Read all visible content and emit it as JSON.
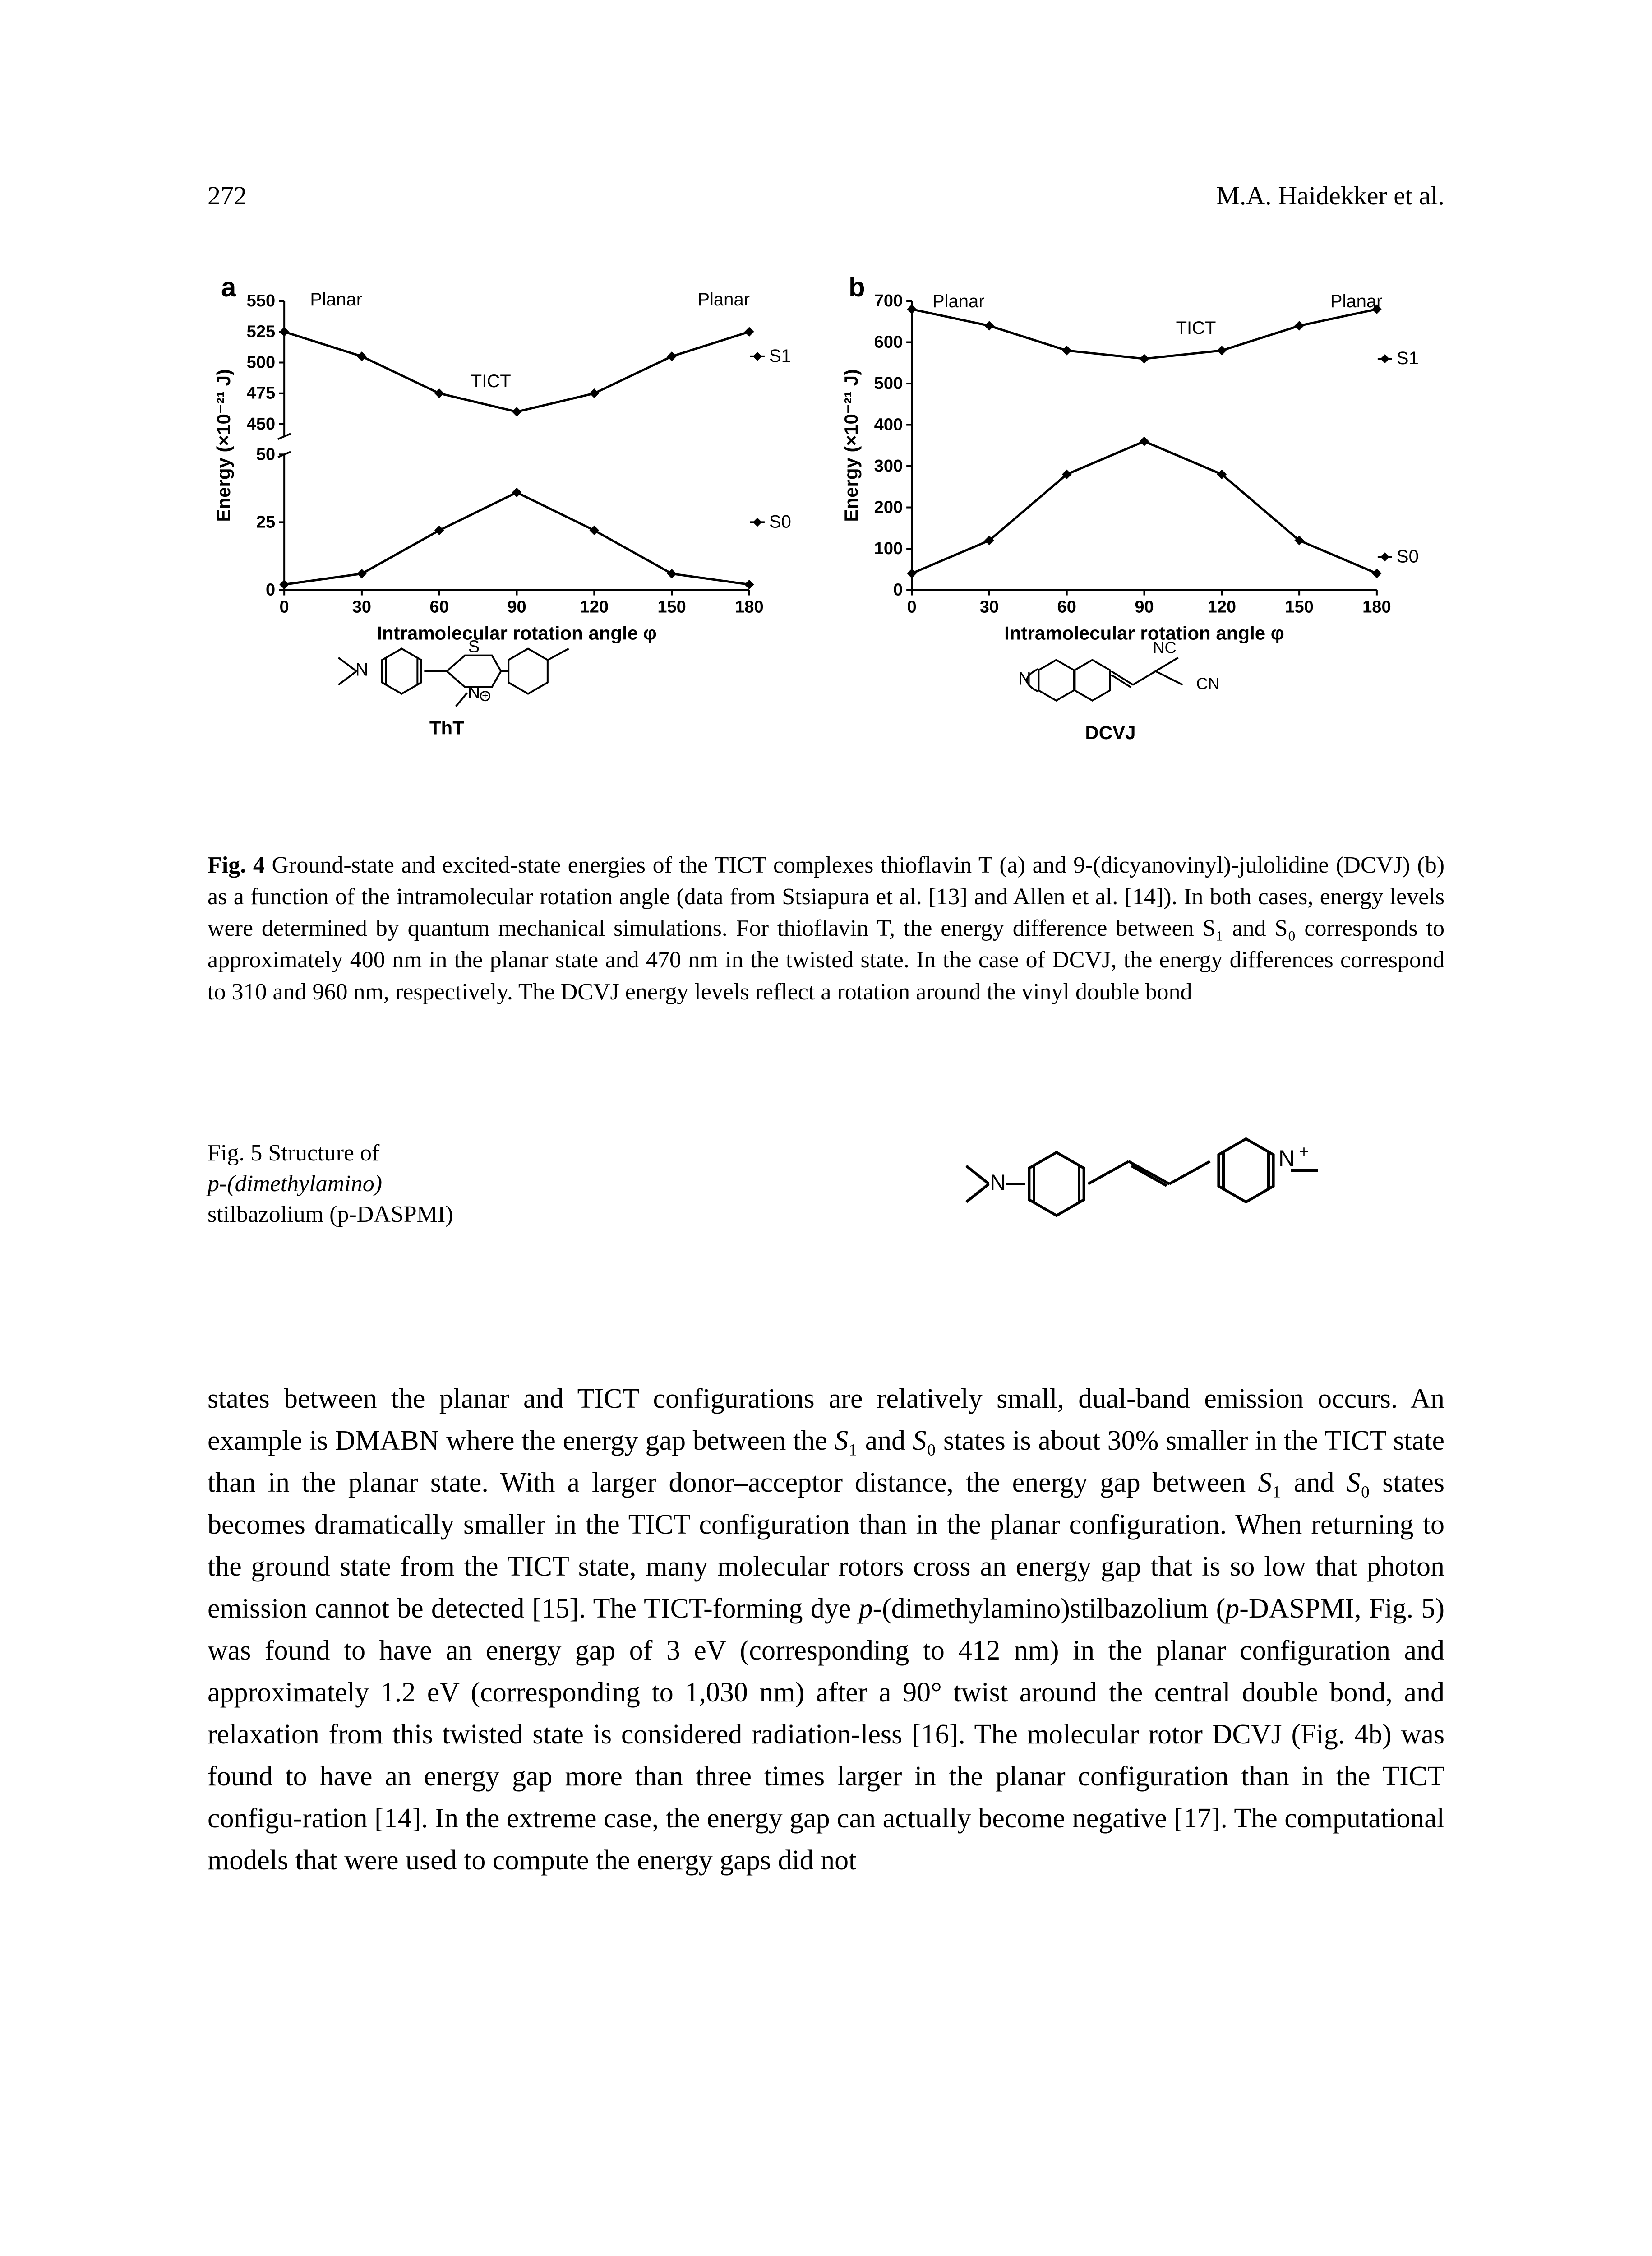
{
  "header": {
    "page_number": "272",
    "running_title": "M.A. Haidekker et al."
  },
  "figure4": {
    "label": "Fig. 4",
    "caption_html": "Ground-state and excited-state energies of the TICT complexes thioflavin T (a) and 9-(dicyanovinyl)-julolidine (DCVJ) (b) as a function of the intramolecular rotation angle (data from Stsiapura et al. [13] and Allen et al. [14]). In both cases, energy levels were determined by quantum mechanical simulations. For thioflavin T, the energy difference between S₁ and S₀ corresponds to approximately 400 nm in the planar state and 470 nm in the twisted state. In the case of DCVJ, the energy differences correspond to 310 and 960 nm, respectively. The DCVJ energy levels reflect a rotation around the vinyl double bond",
    "panel_a": {
      "panel_label": "a",
      "molecule_label": "ThT",
      "ylabel": "Energy (×10⁻²¹ J)",
      "xlabel": "Intramolecular rotation angle  φ",
      "upper": {
        "ylim": [
          440,
          550
        ],
        "yticks": [
          450,
          475,
          500,
          525,
          550
        ],
        "series_label": "S1",
        "planar_left": "Planar",
        "planar_right": "Planar",
        "annotation": "TICT",
        "x": [
          0,
          30,
          60,
          90,
          120,
          150,
          180
        ],
        "y": [
          525,
          505,
          475,
          460,
          475,
          505,
          525
        ]
      },
      "lower": {
        "ylim": [
          0,
          50
        ],
        "yticks": [
          0,
          25,
          50
        ],
        "series_label": "S0",
        "x": [
          0,
          30,
          60,
          90,
          120,
          150,
          180
        ],
        "y": [
          2,
          6,
          22,
          36,
          22,
          6,
          2
        ]
      },
      "xlim": [
        0,
        180
      ],
      "xticks": [
        0,
        30,
        60,
        90,
        120,
        150,
        180
      ],
      "colors": {
        "line": "#000000",
        "marker_fill": "#000000",
        "axis": "#000000",
        "bg": "#ffffff"
      },
      "line_width": 5,
      "marker_size": 10,
      "font": {
        "label_pt": 42,
        "tick_pt": 38,
        "annot_pt": 40
      }
    },
    "panel_b": {
      "panel_label": "b",
      "molecule_label": "DCVJ",
      "ylabel": "Energy (×10⁻²¹ J)",
      "xlabel": "Intramolecular rotation angle  φ",
      "upper": {
        "ylim": [
          0,
          700
        ],
        "series_label": "S1",
        "planar_left": "Planar",
        "planar_right": "Planar",
        "annotation": "TICT",
        "x": [
          0,
          30,
          60,
          90,
          120,
          150,
          180
        ],
        "y": [
          680,
          640,
          580,
          560,
          580,
          640,
          680
        ]
      },
      "lower": {
        "series_label": "S0",
        "x": [
          0,
          30,
          60,
          90,
          120,
          150,
          180
        ],
        "y": [
          40,
          120,
          280,
          360,
          280,
          120,
          40
        ]
      },
      "ylim": [
        0,
        700
      ],
      "yticks": [
        0,
        100,
        200,
        300,
        400,
        500,
        600,
        700
      ],
      "xlim": [
        0,
        180
      ],
      "xticks": [
        0,
        30,
        60,
        90,
        120,
        150,
        180
      ],
      "nc_label": "NC",
      "cn_label": "CN",
      "colors": {
        "line": "#000000",
        "marker_fill": "#000000",
        "axis": "#000000",
        "bg": "#ffffff"
      },
      "line_width": 5,
      "marker_size": 10,
      "font": {
        "label_pt": 42,
        "tick_pt": 38,
        "annot_pt": 40
      }
    }
  },
  "figure5": {
    "label": "Fig. 5",
    "caption_lines": [
      "Structure of",
      "p-(dimethylamino)",
      "stilbazolium (p-DASPMI)"
    ]
  },
  "body": {
    "paragraph_html": "states between the planar and TICT configurations are relatively small, dual-band emission occurs. An example is DMABN where the energy gap between the <span class=\"sub\">S</span>₁ and <span class=\"sub\">S</span>₀ states is about 30% smaller in the TICT state than in the planar state. With a larger donor–acceptor distance, the energy gap between <span class=\"sub\">S</span>₁ and <span class=\"sub\">S</span>₀ states becomes dramatically smaller in the TICT configuration than in the planar configuration. When returning to the ground state from the TICT state, many molecular rotors cross an energy gap that is so low that photon emission cannot be detected [15]. The TICT-forming dye <span class=\"sub\">p</span>-(dimethylamino)stilbazolium (<span class=\"sub\">p</span>-DASPMI, Fig. 5) was found to have an energy gap of 3 eV (corresponding to 412 nm) in the planar configuration and approximately 1.2 eV (corresponding to 1,030 nm) after a 90° twist around the central double bond, and relaxation from this twisted state is considered radiation-less [16]. The molecular rotor DCVJ (Fig. 4b) was found to have an energy gap more than three times larger in the planar configuration than in the TICT configu-ration [14]. In the extreme case, the energy gap can actually become negative [17]. The computational models that were used to compute the energy gaps did not"
  }
}
